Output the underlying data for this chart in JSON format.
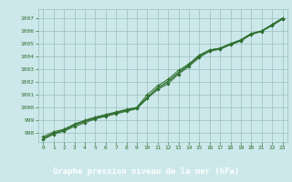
{
  "title": "Graphe pression niveau de la mer (hPa)",
  "bg_color": "#cce8ea",
  "plot_bg": "#cce8ea",
  "grid_color": "#9bbfbf",
  "line_color": "#2d6e2d",
  "label_bg": "#2d6e2d",
  "label_fg": "#ffffff",
  "ylim": [
    997.3,
    1007.7
  ],
  "yticks": [
    998,
    999,
    1000,
    1001,
    1002,
    1003,
    1004,
    1005,
    1006,
    1007
  ],
  "xlim": [
    -0.5,
    23.5
  ],
  "xticks": [
    0,
    1,
    2,
    3,
    4,
    5,
    6,
    7,
    8,
    9,
    10,
    11,
    12,
    13,
    14,
    15,
    16,
    17,
    18,
    19,
    20,
    21,
    22,
    23
  ],
  "series": [
    [
      997.7,
      998.1,
      998.3,
      998.7,
      999.0,
      999.25,
      999.45,
      999.65,
      999.85,
      1000.0,
      1001.0,
      1001.7,
      1002.2,
      1002.9,
      1003.4,
      1004.1,
      1004.5,
      1004.65,
      1005.0,
      1005.3,
      1005.8,
      1006.0,
      1006.5,
      1007.0
    ],
    [
      997.5,
      997.9,
      998.15,
      998.5,
      998.8,
      999.1,
      999.3,
      999.5,
      999.7,
      999.9,
      1000.7,
      1001.4,
      1001.85,
      1002.6,
      1003.2,
      1003.9,
      1004.4,
      1004.55,
      1004.9,
      1005.2,
      1005.7,
      1005.95,
      1006.4,
      1006.9
    ],
    [
      997.55,
      997.95,
      998.2,
      998.6,
      998.9,
      999.15,
      999.35,
      999.55,
      999.75,
      999.95,
      1000.75,
      1001.5,
      1002.0,
      1002.7,
      1003.3,
      1004.0,
      1004.45,
      1004.6,
      1004.95,
      1005.25,
      1005.75,
      1005.97,
      1006.45,
      1006.95
    ],
    [
      997.6,
      998.0,
      998.25,
      998.65,
      998.95,
      999.2,
      999.4,
      999.6,
      999.8,
      1000.0,
      1000.8,
      1001.55,
      1002.05,
      1002.75,
      1003.35,
      1004.05,
      1004.5,
      1004.62,
      1004.97,
      1005.27,
      1005.77,
      1005.98,
      1006.47,
      1006.97
    ]
  ],
  "markers": [
    {
      "type": "x",
      "indices": [
        0,
        1,
        2,
        3,
        4,
        5,
        6,
        7,
        8,
        9,
        10,
        11,
        12,
        13,
        14,
        15,
        16,
        17,
        18,
        19,
        20,
        21,
        22,
        23
      ]
    },
    {
      "type": "d",
      "indices": [
        0,
        1,
        2,
        3,
        4,
        5,
        6,
        7,
        8,
        9,
        10,
        11,
        12,
        13,
        14,
        15,
        16,
        17,
        18,
        19,
        20,
        21,
        22,
        23
      ]
    },
    {
      "type": "none",
      "indices": []
    },
    {
      "type": "none",
      "indices": []
    }
  ]
}
